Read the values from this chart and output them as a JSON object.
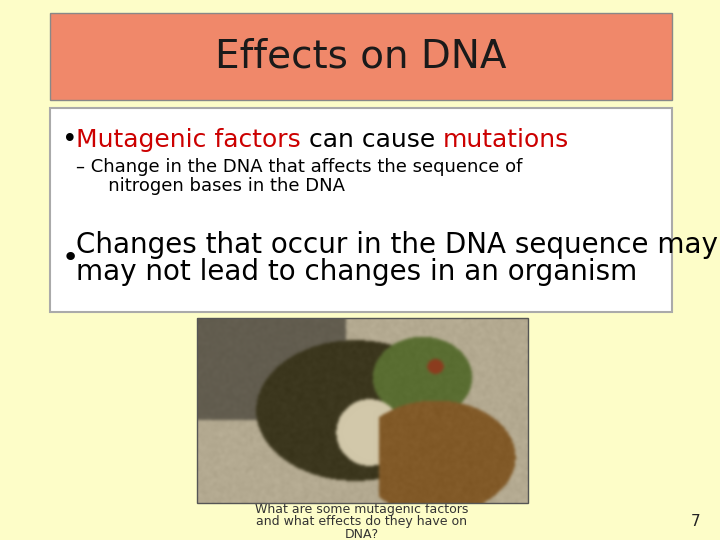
{
  "title": "Effects on DNA",
  "title_bg_color": "#F0886A",
  "slide_bg_color": "#FDFDC8",
  "title_text_color": "#1a1a1a",
  "bullet1_red1": "Mutagenic factors",
  "bullet1_black": " can cause ",
  "bullet1_red2": "mutations",
  "sub_bullet_line1": "– Change in the DNA that affects the sequence of",
  "sub_bullet_line2": "   nitrogen bases in the DNA",
  "bullet2_line1": "Changes that occur in the DNA sequence may or",
  "bullet2_line2": "may not lead to changes in an organism",
  "caption_line1": "What are some mutagenic factors",
  "caption_line2": "and what effects do they have on",
  "caption_line3": "DNA?",
  "page_number": "7",
  "content_box_bg": "#FFFFFF",
  "content_box_border": "#AAAAAA",
  "red_color": "#CC0000",
  "black_color": "#000000",
  "title_fontsize": 28,
  "bullet1_fontsize": 18,
  "sub_fontsize": 13,
  "bullet2_fontsize": 20,
  "caption_fontsize": 9,
  "page_fontsize": 11
}
